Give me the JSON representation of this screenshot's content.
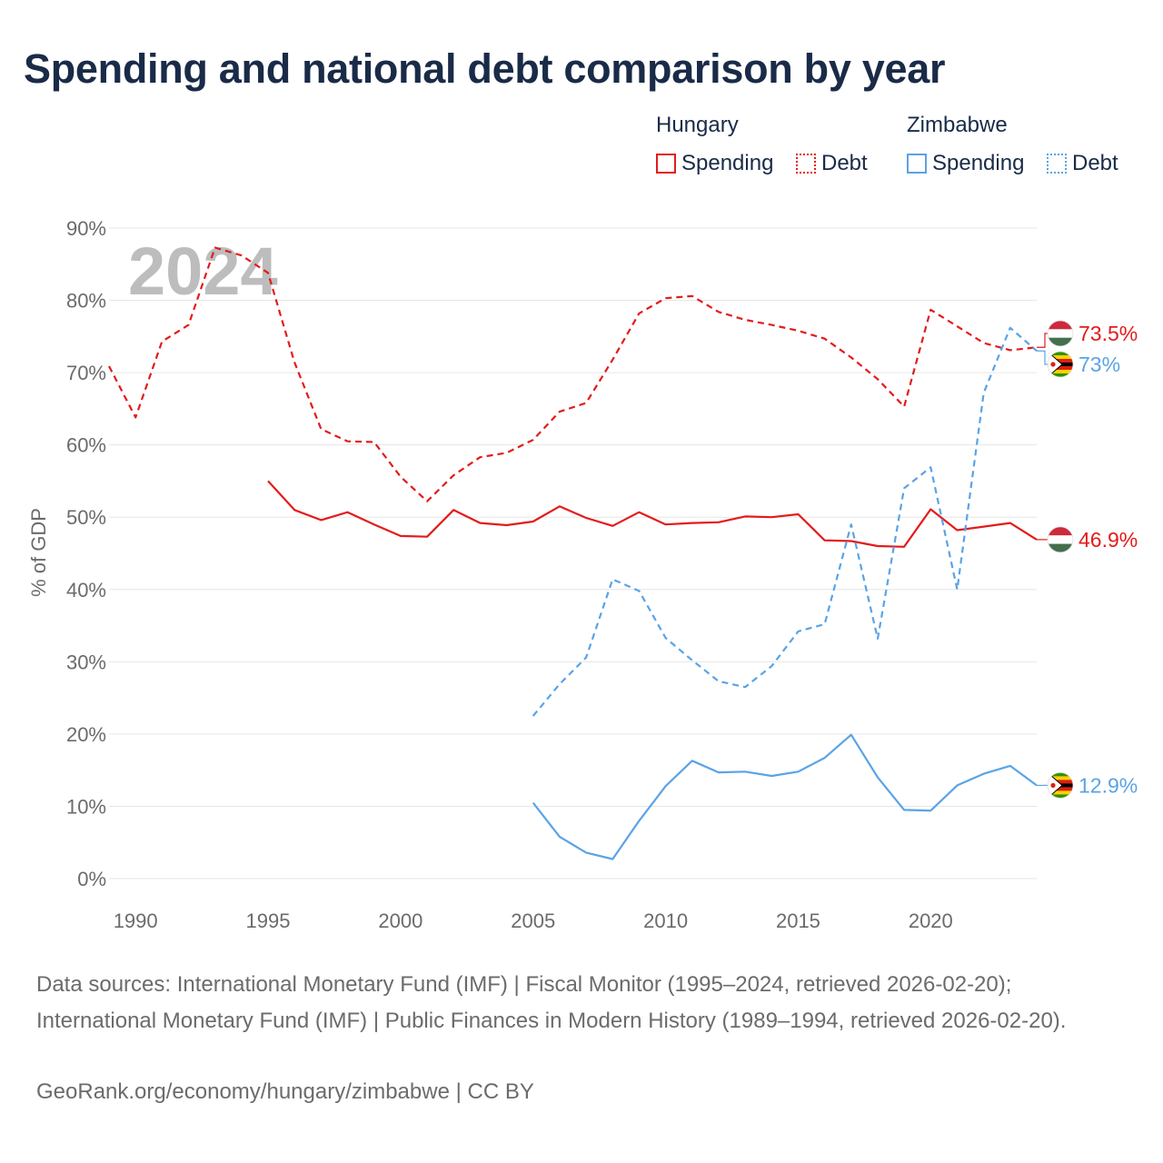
{
  "title": "Spending and national debt comparison by year",
  "legend": {
    "groups": [
      {
        "country": "Hungary",
        "color": "#e31b1b",
        "items": [
          {
            "label": "Spending",
            "style": "solid"
          },
          {
            "label": "Debt",
            "style": "dotted"
          }
        ]
      },
      {
        "country": "Zimbabwe",
        "color": "#5aa3e6",
        "items": [
          {
            "label": "Spending",
            "style": "solid"
          },
          {
            "label": "Debt",
            "style": "dotted"
          }
        ]
      }
    ]
  },
  "chart_data": {
    "type": "line",
    "title": "Spending and national debt comparison by year",
    "year_overlay": "2024",
    "xlabel": "",
    "ylabel": "% of GDP",
    "xlim": [
      1989,
      2024
    ],
    "ylim": [
      0,
      90
    ],
    "x_ticks": [
      1990,
      1995,
      2000,
      2005,
      2010,
      2015,
      2020
    ],
    "x_tick_labels": [
      "1990",
      "1995",
      "2000",
      "2005",
      "2010",
      "2015",
      "2020"
    ],
    "y_ticks": [
      0,
      10,
      20,
      30,
      40,
      50,
      60,
      70,
      80,
      90
    ],
    "y_tick_labels": [
      "0%",
      "10%",
      "20%",
      "30%",
      "40%",
      "50%",
      "60%",
      "70%",
      "80%",
      "90%"
    ],
    "grid": true,
    "series": [
      {
        "name": "Hungary Debt",
        "country": "Hungary",
        "metric": "Debt",
        "color": "#e31b1b",
        "dashed": true,
        "end_label": "73.5%",
        "flag": "hungary",
        "x": [
          1989,
          1990,
          1991,
          1992,
          1993,
          1994,
          1995,
          1996,
          1997,
          1998,
          1999,
          2000,
          2001,
          2002,
          2003,
          2004,
          2005,
          2006,
          2007,
          2008,
          2009,
          2010,
          2011,
          2012,
          2013,
          2014,
          2015,
          2016,
          2017,
          2018,
          2019,
          2020,
          2021,
          2022,
          2023,
          2024
        ],
        "values": [
          70.9,
          63.8,
          74.3,
          76.6,
          87.3,
          86.2,
          83.8,
          71.4,
          62.2,
          60.5,
          60.4,
          55.6,
          52.2,
          55.8,
          58.3,
          58.9,
          60.7,
          64.6,
          65.8,
          71.8,
          78.2,
          80.3,
          80.6,
          78.4,
          77.3,
          76.6,
          75.8,
          74.7,
          72.1,
          69.1,
          65.3,
          78.7,
          76.4,
          74.1,
          73.1,
          73.5
        ]
      },
      {
        "name": "Hungary Spending",
        "country": "Hungary",
        "metric": "Spending",
        "color": "#e31b1b",
        "dashed": false,
        "end_label": "46.9%",
        "flag": "hungary",
        "x": [
          1995,
          1996,
          1997,
          1998,
          1999,
          2000,
          2001,
          2002,
          2003,
          2004,
          2005,
          2006,
          2007,
          2008,
          2009,
          2010,
          2011,
          2012,
          2013,
          2014,
          2015,
          2016,
          2017,
          2018,
          2019,
          2020,
          2021,
          2022,
          2023,
          2024
        ],
        "values": [
          55.0,
          51.0,
          49.6,
          50.7,
          49.0,
          47.4,
          47.3,
          51.0,
          49.2,
          48.9,
          49.4,
          51.5,
          49.9,
          48.8,
          50.7,
          49.0,
          49.2,
          49.3,
          50.1,
          50.0,
          50.4,
          46.8,
          46.7,
          46.0,
          45.9,
          51.1,
          48.2,
          48.7,
          49.2,
          46.9
        ]
      },
      {
        "name": "Zimbabwe Debt",
        "country": "Zimbabwe",
        "metric": "Debt",
        "color": "#5aa3e6",
        "dashed": true,
        "end_label": "73%",
        "flag": "zimbabwe",
        "x": [
          2005,
          2006,
          2007,
          2008,
          2009,
          2010,
          2011,
          2012,
          2013,
          2014,
          2015,
          2016,
          2017,
          2018,
          2019,
          2020,
          2021,
          2022,
          2023,
          2024
        ],
        "values": [
          22.5,
          26.9,
          30.6,
          41.4,
          39.8,
          33.3,
          30.2,
          27.3,
          26.5,
          29.4,
          34.2,
          35.2,
          49.0,
          33.2,
          54.0,
          56.9,
          40.0,
          67.2,
          76.2,
          73.0
        ]
      },
      {
        "name": "Zimbabwe Spending",
        "country": "Zimbabwe",
        "metric": "Spending",
        "color": "#5aa3e6",
        "dashed": false,
        "end_label": "12.9%",
        "flag": "zimbabwe",
        "x": [
          2005,
          2006,
          2007,
          2008,
          2009,
          2010,
          2011,
          2012,
          2013,
          2014,
          2015,
          2016,
          2017,
          2018,
          2019,
          2020,
          2021,
          2022,
          2023,
          2024
        ],
        "values": [
          10.5,
          5.8,
          3.6,
          2.7,
          8.0,
          12.8,
          16.3,
          14.7,
          14.8,
          14.2,
          14.8,
          16.7,
          19.9,
          14.0,
          9.5,
          9.4,
          12.9,
          14.5,
          15.6,
          12.9
        ]
      }
    ]
  },
  "footer": {
    "sources": "Data sources: International Monetary Fund (IMF) | Fiscal Monitor (1995–2024, retrieved 2026-02-20); International Monetary Fund (IMF) | Public Finances in Modern History (1989–1994, retrieved 2026-02-20).",
    "credit": "GeoRank.org/economy/hungary/zimbabwe | CC BY"
  }
}
